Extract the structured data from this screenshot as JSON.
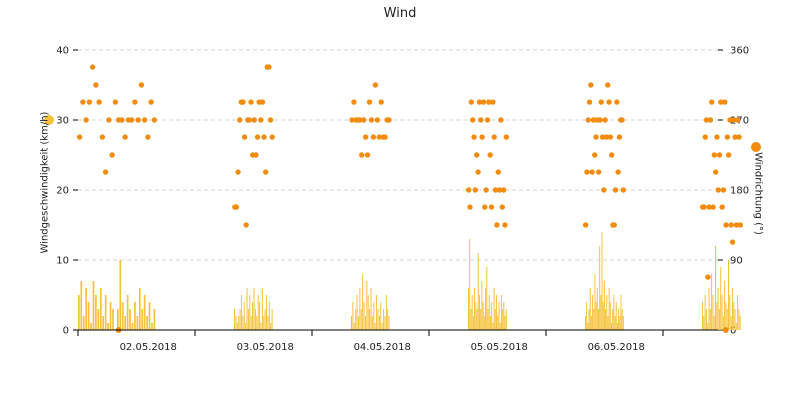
{
  "chart_data": {
    "type": "bar+scatter",
    "title": "Wind",
    "ylabel_left": "Windgeschwindigkeit (km/h)",
    "ylabel_right": "Windrichtung (°)",
    "ylim_left": [
      0,
      40
    ],
    "yticks_left": [
      "0",
      "10",
      "20",
      "30",
      "40"
    ],
    "ylim_right": [
      0,
      360
    ],
    "yticks_right": [
      "0",
      "90",
      "180",
      "270",
      "360"
    ],
    "xticks": [
      "02.05.2018",
      "03.05.2018",
      "04.05.2018",
      "05.05.2018",
      "06.05.2018"
    ],
    "grid": "horizontal dashed",
    "colors": {
      "speed": "#f5c23b",
      "direction": "#f28c0f",
      "axis": "#000000",
      "grid": "#d6d6d6"
    },
    "days": [
      {
        "start_hour": 0,
        "end_hour": 16,
        "speed": [
          5,
          7,
          2,
          6,
          4,
          1,
          7,
          5,
          3,
          6,
          2,
          5,
          1,
          4,
          3,
          0,
          3,
          10,
          4,
          2,
          5,
          3,
          1,
          4,
          2,
          6,
          3,
          5,
          2,
          4,
          1,
          3
        ],
        "direction": [
          248,
          293,
          270,
          293,
          338,
          315,
          293,
          248,
          203,
          270,
          225,
          293,
          270,
          270,
          248,
          270,
          270,
          293,
          270,
          315,
          270,
          248,
          293,
          270
        ]
      },
      {
        "start_hour": 32,
        "end_hour": 40,
        "speed": [
          3,
          2,
          1,
          2,
          3,
          5,
          2,
          4,
          1,
          6,
          3,
          5,
          2,
          4,
          6,
          3,
          2,
          5,
          4,
          1,
          6,
          2,
          3,
          5,
          2,
          4,
          1,
          3
        ],
        "direction": [
          158,
          158,
          203,
          270,
          293,
          293,
          248,
          135,
          270,
          270,
          293,
          225,
          270,
          225,
          248,
          293,
          270,
          293,
          248,
          203,
          338,
          338,
          270,
          248
        ]
      },
      {
        "start_hour": 56,
        "end_hour": 64,
        "speed": [
          2,
          4,
          1,
          3,
          5,
          2,
          6,
          3,
          8,
          4,
          2,
          7,
          5,
          3,
          6,
          2,
          4,
          1,
          5,
          3,
          2,
          4,
          1,
          3,
          2,
          5,
          3,
          2
        ],
        "direction": [
          270,
          293,
          270,
          270,
          270,
          225,
          270,
          248,
          225,
          293,
          270,
          248,
          315,
          270,
          248,
          293,
          248,
          248,
          270,
          270
        ]
      },
      {
        "start_hour": 80,
        "end_hour": 88,
        "speed": [
          6,
          13,
          3,
          5,
          2,
          6,
          4,
          3,
          11,
          5,
          3,
          7,
          4,
          2,
          6,
          9,
          3,
          5,
          2,
          4,
          1,
          6,
          3,
          5,
          2,
          4,
          1,
          5,
          3,
          4,
          2,
          3
        ],
        "direction": [
          180,
          158,
          293,
          270,
          248,
          180,
          225,
          203,
          293,
          270,
          248,
          293,
          158,
          180,
          270,
          293,
          225,
          158,
          293,
          248,
          180,
          135,
          203,
          180,
          270,
          158,
          180,
          135,
          248
        ]
      },
      {
        "start_hour": 104,
        "end_hour": 112,
        "speed": [
          2,
          4,
          1,
          3,
          6,
          2,
          5,
          3,
          8,
          4,
          6,
          3,
          12,
          5,
          14,
          4,
          7,
          3,
          5,
          2,
          6,
          4,
          1,
          3,
          5,
          2,
          4,
          1,
          3,
          2,
          5,
          3,
          2
        ],
        "direction": [
          135,
          203,
          270,
          293,
          315,
          203,
          270,
          225,
          248,
          270,
          203,
          270,
          293,
          248,
          180,
          270,
          248,
          315,
          293,
          248,
          225,
          135,
          135,
          180,
          293,
          203,
          248,
          270,
          270,
          180
        ]
      },
      {
        "start_hour": 128,
        "end_hour": 136,
        "speed": [
          4,
          2,
          5,
          3,
          1,
          6,
          3,
          8,
          5,
          2,
          12,
          4,
          6,
          3,
          9,
          5,
          2,
          7,
          4,
          3,
          10,
          5,
          2,
          6,
          4,
          3,
          1,
          5,
          3,
          2
        ],
        "direction": [
          158,
          158,
          248,
          270,
          68,
          158,
          270,
          293,
          158,
          225,
          203,
          248,
          180,
          225,
          293,
          158,
          180,
          293,
          135,
          248,
          225,
          270,
          135,
          113,
          270,
          248,
          135,
          270,
          248,
          135
        ]
      }
    ],
    "speed_dots": [
      {
        "day": 0,
        "offset": 0.52,
        "value": 0
      },
      {
        "day": 5,
        "offset": 0.61,
        "value": 0
      }
    ]
  }
}
